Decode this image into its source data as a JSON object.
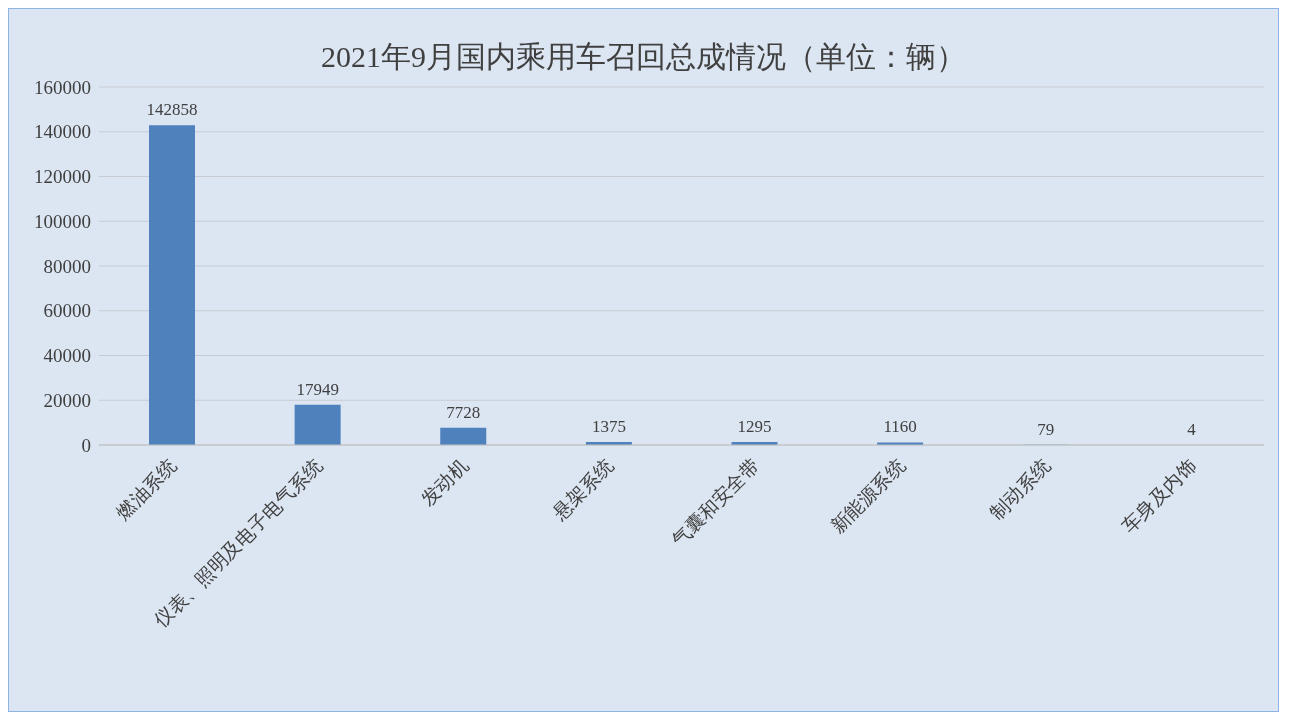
{
  "chart_data": {
    "type": "bar",
    "title": "2021年9月国内乘用车召回总成情况（单位：辆）",
    "categories": [
      "燃油系统",
      "仪表、照明及电子电气系统",
      "发动机",
      "悬架系统",
      "气囊和安全带",
      "新能源系统",
      "制动系统",
      "车身及内饰"
    ],
    "values": [
      142858,
      17949,
      7728,
      1375,
      1295,
      1160,
      79,
      4
    ],
    "color": "#4f81bd",
    "ylim": [
      0,
      160000
    ],
    "yticks": [
      0,
      20000,
      40000,
      60000,
      80000,
      100000,
      120000,
      140000,
      160000
    ],
    "grid": "y",
    "data_labels": true,
    "legend": false
  }
}
